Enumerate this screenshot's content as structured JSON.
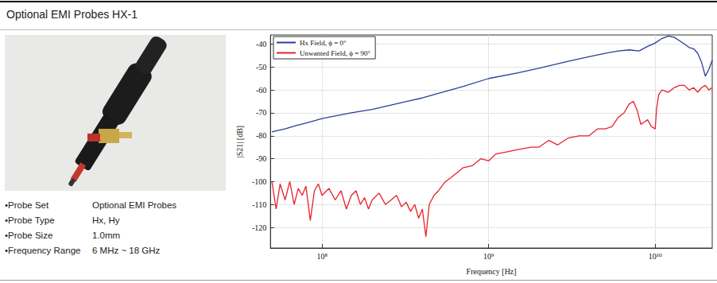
{
  "header": {
    "title": "Optional EMI Probes HX-1"
  },
  "specs": [
    [
      "•Probe Set",
      "Optional EMI Probes"
    ],
    [
      "•Probe Type",
      "Hx, Hy"
    ],
    [
      "•Probe Size",
      "1.0mm"
    ],
    [
      "•Frequency Range",
      "6 MHz ~ 18 GHz"
    ]
  ],
  "chart_data": {
    "type": "line",
    "x_label": "Frequency [Hz]",
    "y_label": "|S21| [dB]",
    "log": "x",
    "grid": true,
    "legend": "upper left",
    "xlim": [
      49000000,
      22000000000
    ],
    "xticks": [
      {
        "value": 100000000,
        "label": "10⁸"
      },
      {
        "value": 1000000000,
        "label": "10⁹"
      },
      {
        "value": 10000000000,
        "label": "10¹⁰"
      }
    ],
    "ylim": [
      -129,
      -36
    ],
    "yticks": [
      -120,
      -110,
      -100,
      -90,
      -80,
      -70,
      -60,
      -50,
      -40
    ],
    "series": [
      {
        "name": "Hx Field, ϕ = 0°",
        "color": "#2b3d9a",
        "x": [
          50000000,
          60000000,
          70000000,
          80000000,
          100000000,
          150000000,
          200000000,
          300000000,
          400000000,
          500000000,
          700000000,
          1000000000,
          1500000000,
          2000000000,
          3000000000,
          4000000000,
          5000000000,
          6000000000,
          7000000000,
          8000000000,
          9000000000,
          10000000000,
          11000000000,
          12000000000,
          13000000000,
          14000000000,
          15000000000,
          16000000000,
          17000000000,
          18000000000,
          19000000000,
          20000000000,
          21000000000,
          22000000000
        ],
        "values": [
          -78.3,
          -77,
          -75.5,
          -74.5,
          -72.5,
          -70,
          -68.5,
          -65.5,
          -63.5,
          -61.5,
          -58.5,
          -55,
          -52.5,
          -50.5,
          -47.5,
          -45.5,
          -44,
          -43,
          -42.5,
          -43,
          -41,
          -39.5,
          -37.5,
          -36.5,
          -37,
          -38.5,
          -40,
          -41.5,
          -42,
          -44,
          -48,
          -54,
          -51,
          -47
        ]
      },
      {
        "name": "Unwanted Field, ϕ = 90°",
        "color": "#e8202a",
        "x": [
          50000000,
          53000000,
          56000000,
          60000000,
          64000000,
          68000000,
          72000000,
          76000000,
          80000000,
          85000000,
          90000000,
          95000000,
          100000000,
          110000000,
          120000000,
          130000000,
          140000000,
          150000000,
          160000000,
          170000000,
          180000000,
          190000000,
          200000000,
          220000000,
          240000000,
          260000000,
          280000000,
          300000000,
          320000000,
          340000000,
          360000000,
          380000000,
          400000000,
          420000000,
          440000000,
          470000000,
          500000000,
          550000000,
          600000000,
          700000000,
          800000000,
          900000000,
          1000000000,
          1100000000,
          1300000000,
          1500000000,
          1800000000,
          2000000000,
          2300000000,
          2600000000,
          3000000000,
          3500000000,
          4000000000,
          4500000000,
          5000000000,
          5500000000,
          6000000000,
          6500000000,
          7000000000,
          7400000000,
          7800000000,
          8200000000,
          8600000000,
          9000000000,
          9500000000,
          10000000000,
          10200000000,
          10500000000,
          11000000000,
          12000000000,
          13000000000,
          14000000000,
          15000000000,
          16000000000,
          17000000000,
          18000000000,
          19000000000,
          20000000000,
          21000000000,
          22000000000
        ],
        "values": [
          -100,
          -112,
          -101,
          -108,
          -100,
          -110,
          -103,
          -106,
          -102,
          -117,
          -104,
          -101,
          -106,
          -103,
          -108,
          -104,
          -112,
          -106,
          -104,
          -110,
          -107,
          -112,
          -108,
          -105,
          -110,
          -108,
          -106,
          -111,
          -109,
          -113,
          -110,
          -116,
          -112,
          -124,
          -110,
          -106,
          -104,
          -100,
          -98,
          -94,
          -93,
          -90,
          -91,
          -88,
          -87,
          -86,
          -85,
          -85,
          -82,
          -84,
          -81,
          -80,
          -80,
          -77,
          -77,
          -76,
          -72,
          -70,
          -66,
          -65,
          -69,
          -75,
          -74,
          -73,
          -76,
          -77,
          -68,
          -62,
          -60,
          -61,
          -59,
          -58,
          -58,
          -60,
          -59,
          -61,
          -59,
          -58,
          -60,
          -59
        ]
      }
    ]
  }
}
